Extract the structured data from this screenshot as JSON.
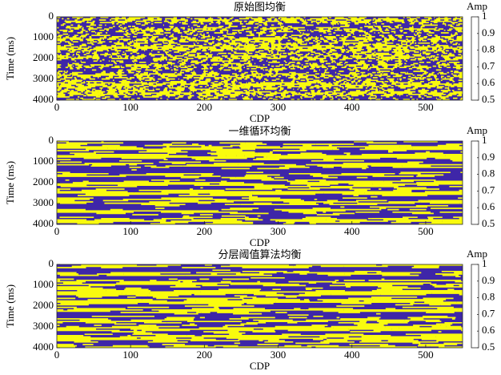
{
  "chart_data": [
    {
      "type": "heatmap",
      "title": "原始图均衡",
      "xlabel": "CDP",
      "ylabel": "Time (ms)",
      "xlim": [
        0,
        550
      ],
      "xticks": [
        0,
        100,
        200,
        300,
        400,
        500
      ],
      "ylim": [
        0,
        4000
      ],
      "yticks": [
        0,
        1000,
        2000,
        3000,
        4000
      ],
      "yreverse": true,
      "colorbar_label": "Amp",
      "clim": [
        0.5,
        1
      ],
      "cticks": [
        0.5,
        0.6,
        0.7,
        0.8,
        0.9,
        1
      ],
      "colormap": [
        "#3e26a8",
        "#2f7fee",
        "#17b5be",
        "#82c96b",
        "#f5bf3b",
        "#f9fb0e"
      ]
    },
    {
      "type": "heatmap",
      "title": "一维循环均衡",
      "xlabel": "CDP",
      "ylabel": "Time (ms)",
      "xlim": [
        0,
        550
      ],
      "xticks": [
        0,
        100,
        200,
        300,
        400,
        500
      ],
      "ylim": [
        0,
        4000
      ],
      "yticks": [
        0,
        1000,
        2000,
        3000,
        4000
      ],
      "yreverse": true,
      "colorbar_label": "Amp",
      "clim": [
        0.5,
        1
      ],
      "cticks": [
        0.5,
        0.6,
        0.7,
        0.8,
        0.9,
        1
      ],
      "colormap": [
        "#3e26a8",
        "#2f7fee",
        "#17b5be",
        "#82c96b",
        "#f5bf3b",
        "#f9fb0e"
      ]
    },
    {
      "type": "heatmap",
      "title": "分层阈值算法均衡",
      "xlabel": "CDP",
      "ylabel": "Time (ms)",
      "xlim": [
        0,
        550
      ],
      "xticks": [
        0,
        100,
        200,
        300,
        400,
        500
      ],
      "ylim": [
        0,
        4000
      ],
      "yticks": [
        0,
        1000,
        2000,
        3000,
        4000
      ],
      "yreverse": true,
      "colorbar_label": "Amp",
      "clim": [
        0.5,
        1
      ],
      "cticks": [
        0.5,
        0.6,
        0.7,
        0.8,
        0.9,
        1
      ],
      "colormap": [
        "#3e26a8",
        "#2f7fee",
        "#17b5be",
        "#82c96b",
        "#f5bf3b",
        "#f9fb0e"
      ]
    }
  ]
}
